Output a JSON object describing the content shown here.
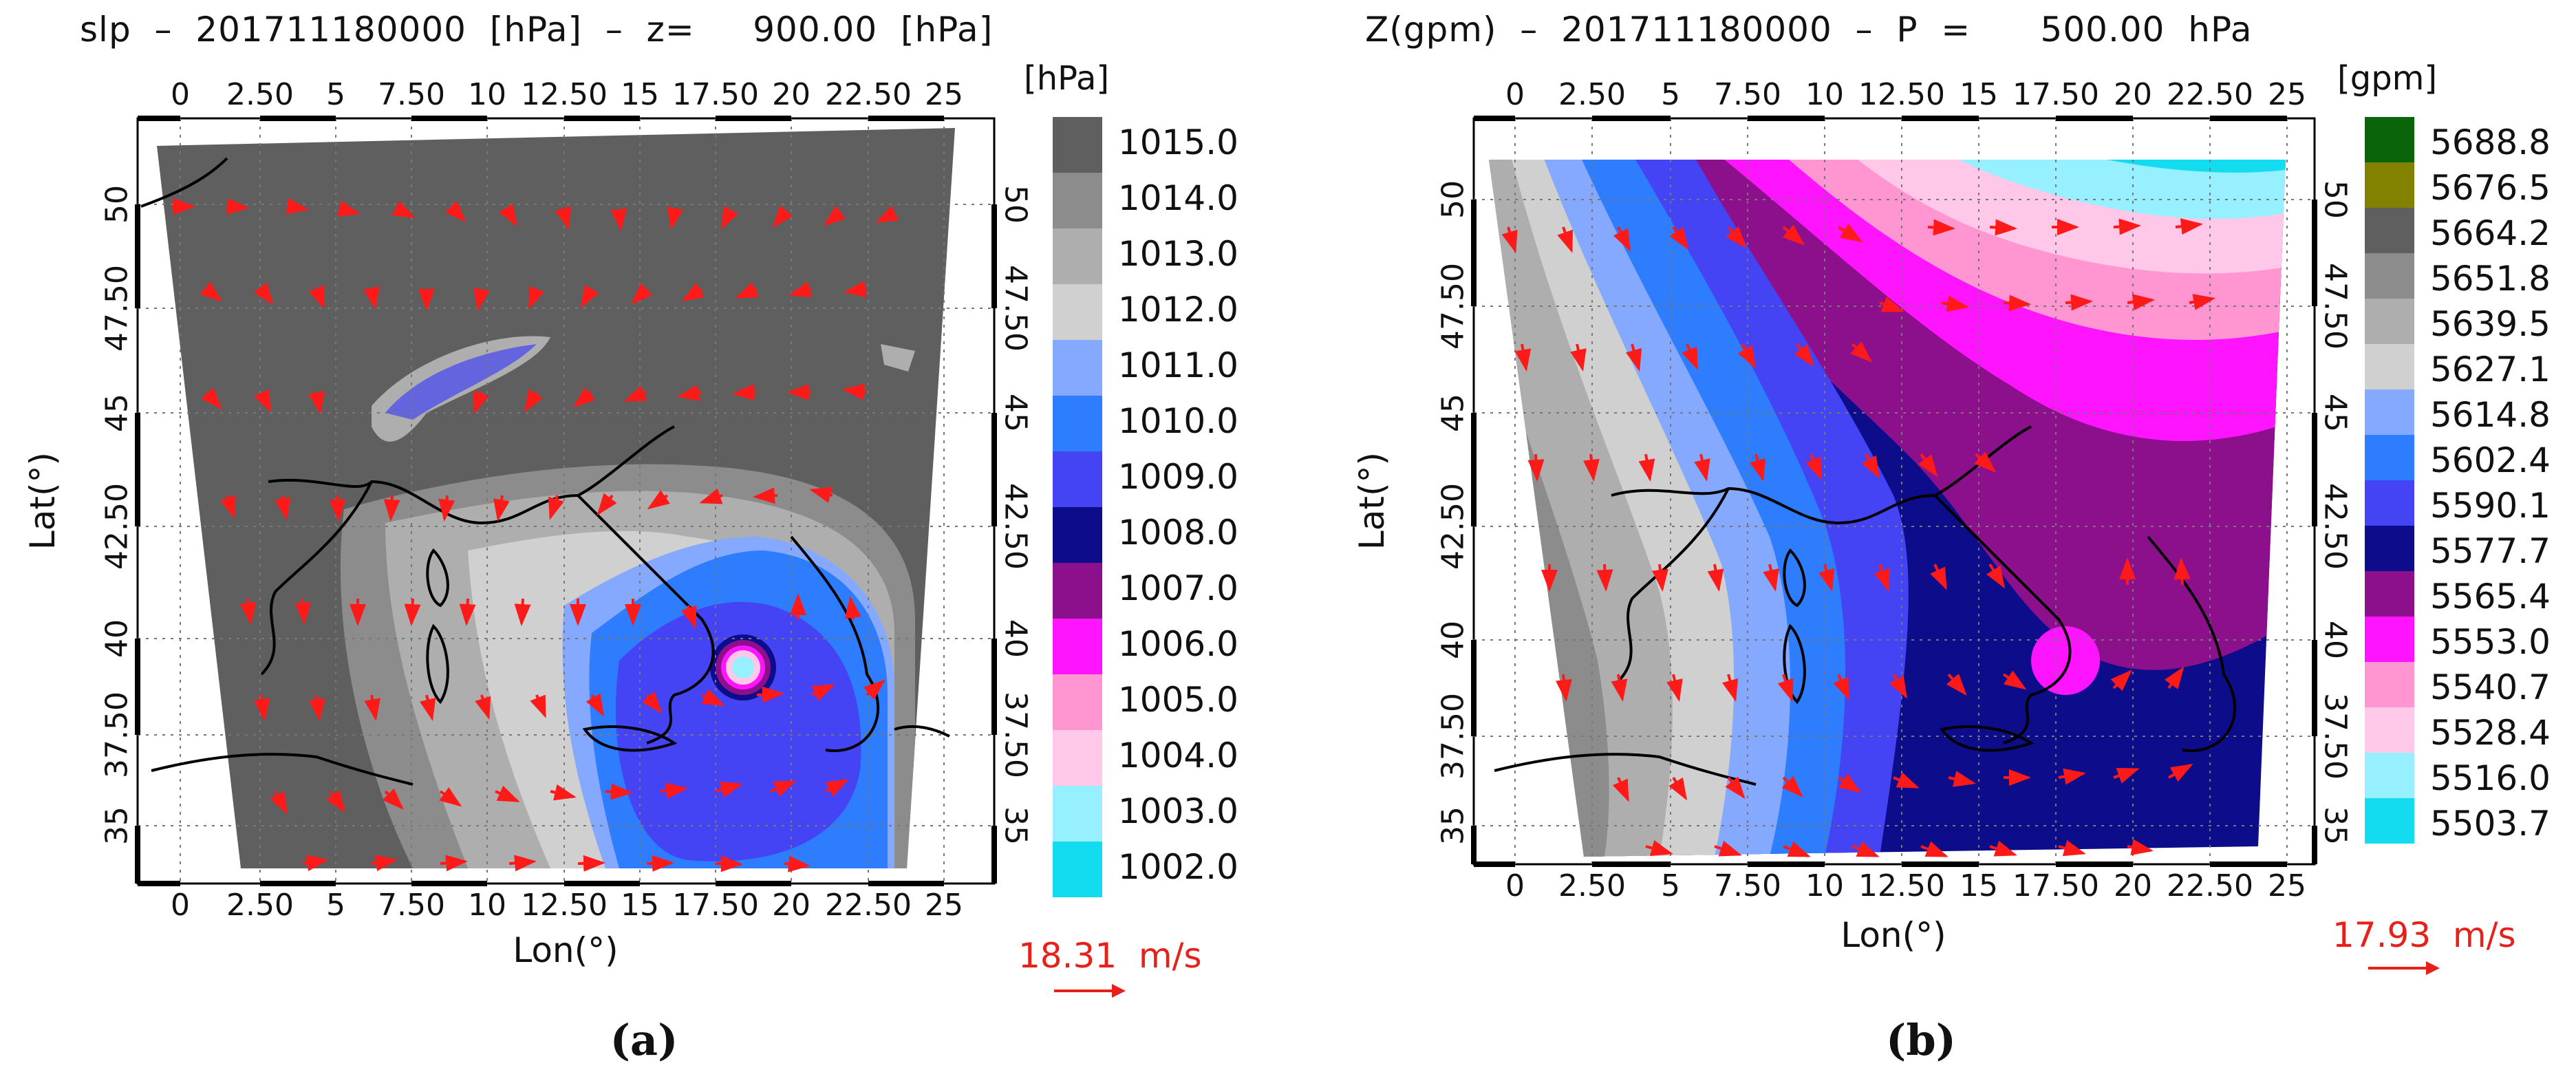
{
  "panel_a": {
    "title": "slp  –  201711180000  [hPa]  –  z=     900.00  [hPa]",
    "legend_units": "[hPa]",
    "lon_ticks": [
      "0",
      "2.50",
      "5",
      "7.50",
      "10",
      "12.50",
      "15",
      "17.50",
      "20",
      "22.50",
      "25"
    ],
    "lat_ticks": [
      "50",
      "47.50",
      "45",
      "42.50",
      "40",
      "37.50",
      "35"
    ],
    "x_label": "Lon(°)",
    "y_label": "Lat(°)",
    "legend": [
      {
        "label": "1015.0",
        "color": "#5f5f5f"
      },
      {
        "label": "1014.0",
        "color": "#8c8c8c"
      },
      {
        "label": "1013.0",
        "color": "#aeaeae"
      },
      {
        "label": "1012.0",
        "color": "#d0d0d0"
      },
      {
        "label": "1011.0",
        "color": "#84a9ff"
      },
      {
        "label": "1010.0",
        "color": "#2f7dff"
      },
      {
        "label": "1009.0",
        "color": "#4444f4"
      },
      {
        "label": "1008.0",
        "color": "#0d0d8c"
      },
      {
        "label": "1007.0",
        "color": "#8c0f8c"
      },
      {
        "label": "1006.0",
        "color": "#ff14ff"
      },
      {
        "label": "1005.0",
        "color": "#ff96d2"
      },
      {
        "label": "1004.0",
        "color": "#ffc8e8"
      },
      {
        "label": "1003.0",
        "color": "#96f0ff"
      },
      {
        "label": "1002.0",
        "color": "#14dcf0"
      }
    ],
    "wind_ref": "18.31  m/s",
    "caption": "(a)"
  },
  "panel_b": {
    "title": "Z(gpm)  –  201711180000  –  P  =      500.00  hPa",
    "legend_units": "[gpm]",
    "lon_ticks": [
      "0",
      "2.50",
      "5",
      "7.50",
      "10",
      "12.50",
      "15",
      "17.50",
      "20",
      "22.50",
      "25"
    ],
    "lat_ticks": [
      "50",
      "47.50",
      "45",
      "42.50",
      "40",
      "37.50",
      "35"
    ],
    "x_label": "Lon(°)",
    "y_label": "Lat(°)",
    "legend": [
      {
        "label": "5688.8",
        "color": "#0a640a"
      },
      {
        "label": "5676.5",
        "color": "#828200"
      },
      {
        "label": "5664.2",
        "color": "#5f5f5f"
      },
      {
        "label": "5651.8",
        "color": "#8c8c8c"
      },
      {
        "label": "5639.5",
        "color": "#aeaeae"
      },
      {
        "label": "5627.1",
        "color": "#d0d0d0"
      },
      {
        "label": "5614.8",
        "color": "#84a9ff"
      },
      {
        "label": "5602.4",
        "color": "#2f7dff"
      },
      {
        "label": "5590.1",
        "color": "#4444f4"
      },
      {
        "label": "5577.7",
        "color": "#0d0d8c"
      },
      {
        "label": "5565.4",
        "color": "#8c0f8c"
      },
      {
        "label": "5553.0",
        "color": "#ff14ff"
      },
      {
        "label": "5540.7",
        "color": "#ff96d2"
      },
      {
        "label": "5528.4",
        "color": "#ffc8e8"
      },
      {
        "label": "5516.0",
        "color": "#96f0ff"
      },
      {
        "label": "5503.7",
        "color": "#14dcf0"
      }
    ],
    "wind_ref": "17.93  m/s",
    "caption": "(b)"
  }
}
